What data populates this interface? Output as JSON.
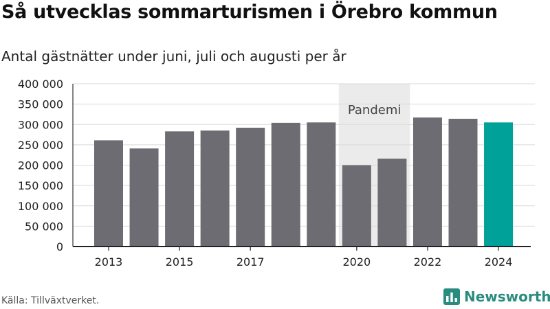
{
  "title": "Så utvecklas sommarturismen i Örebro kommun",
  "subtitle": "Antal gästnätter under juni, juli och augusti per år",
  "source": "Källa: Tillväxtverket.",
  "brand": {
    "name": "Newsworthy",
    "icon": "bar-chart-logo-icon"
  },
  "colors": {
    "bar": "#6d6c72",
    "highlight": "#00a199",
    "band": "#ebebeb",
    "grid": "#d9d9d9",
    "brand": "#2a8c7e"
  },
  "chart_data": {
    "type": "bar",
    "categories": [
      "2013",
      "2014",
      "2015",
      "2016",
      "2017",
      "2018",
      "2019",
      "2020",
      "2021",
      "2022",
      "2023",
      "2024"
    ],
    "values": [
      261000,
      241000,
      283000,
      285000,
      292000,
      304000,
      305000,
      200000,
      216000,
      317000,
      314000,
      305000
    ],
    "highlight_category": "2024",
    "x_tick_labels": [
      "2013",
      "2015",
      "2017",
      "2020",
      "2022",
      "2024"
    ],
    "y_ticks": [
      0,
      50000,
      100000,
      150000,
      200000,
      250000,
      300000,
      350000,
      400000
    ],
    "y_tick_labels": [
      "0",
      "50 000",
      "100 000",
      "150 000",
      "200 000",
      "250 000",
      "300 000",
      "350 000",
      "400 000"
    ],
    "ylim": [
      0,
      400000
    ],
    "grid": true,
    "xlabel": "",
    "ylabel": "",
    "annotations": [
      {
        "type": "band",
        "from": "2020",
        "to": "2021",
        "label": "Pandemi"
      }
    ]
  }
}
